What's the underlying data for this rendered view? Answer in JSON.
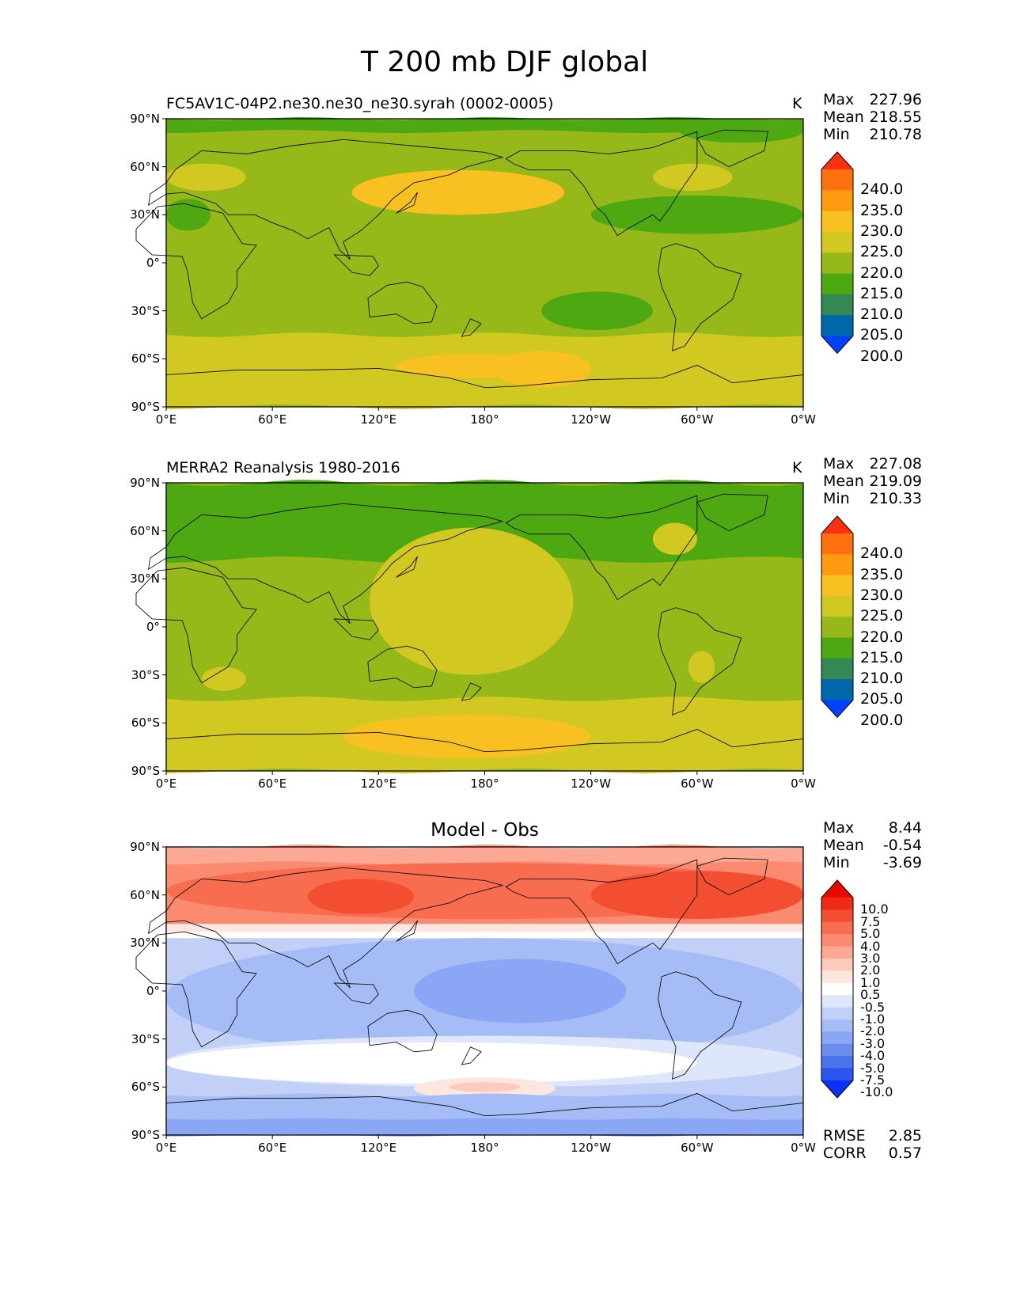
{
  "figure": {
    "title": "T 200 mb DJF global",
    "x_ticks": [
      "0°E",
      "60°E",
      "120°E",
      "180°",
      "120°W",
      "60°W",
      "0°W"
    ],
    "y_ticks": [
      "90°N",
      "60°N",
      "30°N",
      "0°",
      "30°S",
      "60°S",
      "90°S"
    ]
  },
  "panels": [
    {
      "title": "FC5AV1C-04P2.ne30.ne30_ne30.syrah (0002-0005)",
      "unit": "K",
      "stats": [
        {
          "label": "Max",
          "value": "227.96"
        },
        {
          "label": "Mean",
          "value": "218.55"
        },
        {
          "label": "Min",
          "value": "210.78"
        }
      ],
      "colorbar": {
        "labels": [
          "240.0",
          "235.0",
          "230.0",
          "225.0",
          "220.0",
          "215.0",
          "210.0",
          "205.0",
          "200.0"
        ],
        "colors": [
          "#0040ff",
          "#0068a8",
          "#338855",
          "#4ea812",
          "#96b818",
          "#d2c822",
          "#f8c020",
          "#ff9a10",
          "#ff7010",
          "#ff3010"
        ]
      }
    },
    {
      "title": "MERRA2 Reanalysis 1980-2016",
      "unit": "K",
      "stats": [
        {
          "label": "Max",
          "value": "227.08"
        },
        {
          "label": "Mean",
          "value": "219.09"
        },
        {
          "label": "Min",
          "value": "210.33"
        }
      ],
      "colorbar": {
        "labels": [
          "240.0",
          "235.0",
          "230.0",
          "225.0",
          "220.0",
          "215.0",
          "210.0",
          "205.0",
          "200.0"
        ],
        "colors": [
          "#0040ff",
          "#0068a8",
          "#338855",
          "#4ea812",
          "#96b818",
          "#d2c822",
          "#f8c020",
          "#ff9a10",
          "#ff7010",
          "#ff3010"
        ]
      }
    },
    {
      "title": "Model - Obs",
      "unit": "",
      "stats": [
        {
          "label": "Max",
          "value": "8.44"
        },
        {
          "label": "Mean",
          "value": "-0.54"
        },
        {
          "label": "Min",
          "value": "-3.69"
        }
      ],
      "extra_stats": [
        {
          "label": "RMSE",
          "value": "2.85"
        },
        {
          "label": "CORR",
          "value": "0.57"
        }
      ],
      "colorbar": {
        "labels": [
          "10.0",
          "7.5",
          "5.0",
          "4.0",
          "3.0",
          "2.0",
          "1.0",
          "0.5",
          "-0.5",
          "-1.0",
          "-2.0",
          "-3.0",
          "-4.0",
          "-5.0",
          "-7.5",
          "-10.0"
        ],
        "colors": [
          "#0b30f8",
          "#2a55f0",
          "#4a72ec",
          "#6a8ef0",
          "#8ba6f4",
          "#a6bcf6",
          "#c2d0f8",
          "#dde6fb",
          "#ffffff",
          "#fde6e0",
          "#fdcabc",
          "#fca894",
          "#fb8a70",
          "#f86c50",
          "#f44e32",
          "#ef2a16",
          "#e80a00"
        ]
      }
    }
  ],
  "chart_data": [
    {
      "type": "heatmap",
      "title": "FC5AV1C-04P2.ne30.ne30_ne30.syrah (0002-0005)",
      "field": "T 200 mb DJF global",
      "unit": "K",
      "xlim": [
        0,
        360
      ],
      "ylim": [
        -90,
        90
      ],
      "levels": [
        200,
        205,
        210,
        215,
        220,
        225,
        230,
        235,
        240
      ],
      "stats": {
        "max": 227.96,
        "mean": 218.55,
        "min": 210.78
      },
      "regions": [
        {
          "lat": [
            -90,
            -45
          ],
          "value": "220-225"
        },
        {
          "lat": [
            -75,
            -55
          ],
          "lon": [
            130,
            240
          ],
          "value": "225-230"
        },
        {
          "lat": [
            -45,
            80
          ],
          "value": "215-220"
        },
        {
          "lat": [
            -40,
            -18
          ],
          "lon": [
            215,
            275
          ],
          "value": "210-215"
        },
        {
          "lat": [
            20,
            40
          ],
          "lon": [
            240,
            360
          ],
          "value": "210-215"
        },
        {
          "lat": [
            30,
            58
          ],
          "lon": [
            105,
            225
          ],
          "value": "225-230"
        },
        {
          "lat": [
            45,
            62
          ],
          "lon": [
            0,
            30
          ],
          "value": "220-225"
        }
      ]
    },
    {
      "type": "heatmap",
      "title": "MERRA2 Reanalysis 1980-2016",
      "field": "T 200 mb DJF global",
      "unit": "K",
      "xlim": [
        0,
        360
      ],
      "ylim": [
        -90,
        90
      ],
      "levels": [
        200,
        205,
        210,
        215,
        220,
        225,
        230,
        235,
        240
      ],
      "stats": {
        "max": 227.08,
        "mean": 219.09,
        "min": 210.33
      },
      "regions": [
        {
          "lat": [
            -90,
            -45
          ],
          "value": "220-225"
        },
        {
          "lat": [
            -80,
            -55
          ],
          "lon": [
            100,
            240
          ],
          "value": "225-230"
        },
        {
          "lat": [
            -45,
            40
          ],
          "value": "215-220"
        },
        {
          "lat": [
            -30,
            60
          ],
          "lon": [
            110,
            230
          ],
          "value": "220-225"
        },
        {
          "lat": [
            40,
            90
          ],
          "value": "210-215"
        }
      ]
    },
    {
      "type": "heatmap",
      "title": "Model - Obs",
      "field": "T 200 mb DJF global",
      "xlim": [
        0,
        360
      ],
      "ylim": [
        -90,
        90
      ],
      "levels": [
        -10,
        -7.5,
        -5,
        -4,
        -3,
        -2,
        -1,
        -0.5,
        0.5,
        1,
        2,
        3,
        4,
        5,
        7.5,
        10
      ],
      "stats": {
        "max": 8.44,
        "mean": -0.54,
        "min": -3.69,
        "rmse": 2.85,
        "corr": 0.57
      },
      "regions": [
        {
          "lat": [
            40,
            90
          ],
          "value": "3 to 7.5"
        },
        {
          "lat": [
            -45,
            35
          ],
          "value": "-1 to -3"
        },
        {
          "lat": [
            -60,
            -25
          ],
          "value": "-0.5 to 0.5"
        },
        {
          "lat": [
            -65,
            -55
          ],
          "lon": [
            150,
            220
          ],
          "value": "0.5 to 2"
        },
        {
          "lat": [
            -90,
            -65
          ],
          "value": "-1 to -3"
        }
      ]
    }
  ]
}
